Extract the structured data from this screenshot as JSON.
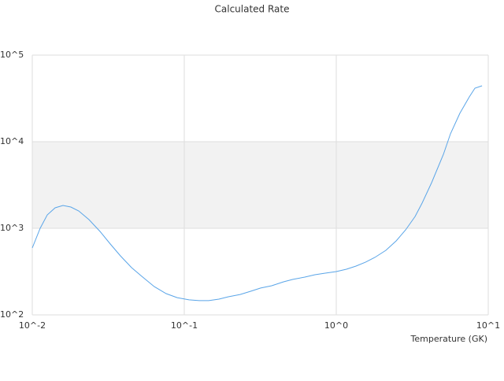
{
  "chart_data": {
    "type": "line",
    "title": "Calculated Rate",
    "x_label": "Temperature (GK)",
    "x_scale": "log",
    "y_scale": "log",
    "xlim": [
      0.01,
      10
    ],
    "ylim": [
      100,
      100000
    ],
    "xticks": [
      {
        "value": 0.01,
        "label": "10^-2"
      },
      {
        "value": 0.1,
        "label": "10^-1"
      },
      {
        "value": 1,
        "label": "10^0"
      },
      {
        "value": 10,
        "label": "10^1"
      }
    ],
    "yticks": [
      {
        "value": 100,
        "label": "10^2"
      },
      {
        "value": 1000,
        "label": "10^3"
      },
      {
        "value": 10000,
        "label": "10^4"
      },
      {
        "value": 100000,
        "label": "10^5"
      }
    ],
    "grid": true,
    "alternating_bands": true,
    "series": [
      {
        "color": "#5aa5e8",
        "x": [
          0.01,
          0.01127,
          0.01254,
          0.01413,
          0.01592,
          0.01794,
          0.02021,
          0.0236,
          0.0279,
          0.0326,
          0.038,
          0.045,
          0.0525,
          0.0635,
          0.076,
          0.0898,
          0.1074,
          0.1254,
          0.1448,
          0.169,
          0.195,
          0.233,
          0.272,
          0.318,
          0.376,
          0.45,
          0.519,
          0.621,
          0.724,
          0.846,
          1.0,
          1.167,
          1.349,
          1.556,
          1.795,
          2.12,
          2.48,
          2.86,
          3.3,
          3.67,
          4.24,
          5.07,
          5.64,
          6.5,
          7.51,
          8.17,
          9.1
        ],
        "values": [
          593,
          1000,
          1427,
          1723,
          1834,
          1760,
          1585,
          1259,
          919,
          658,
          481,
          351,
          279,
          212,
          176,
          158,
          149,
          146,
          146,
          152,
          162,
          172,
          187,
          204,
          217,
          241,
          257,
          273,
          291,
          303,
          316,
          337,
          366,
          406,
          461,
          556,
          716,
          959,
          1368,
          1954,
          3367,
          7155,
          12330,
          21240,
          32960,
          41500,
          44200
        ]
      }
    ]
  }
}
